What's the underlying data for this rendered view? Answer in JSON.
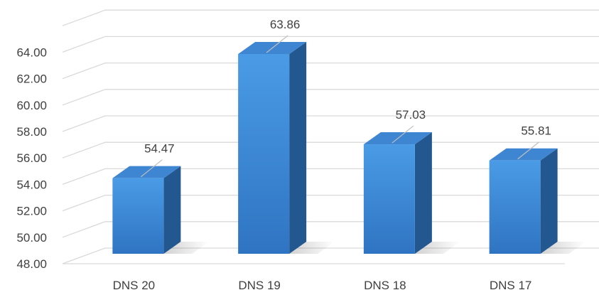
{
  "chart_data": {
    "type": "bar",
    "style": "3d-column",
    "categories": [
      "DNS 20",
      "DNS 19",
      "DNS 18",
      "DNS 17"
    ],
    "values": [
      54.47,
      63.86,
      57.03,
      55.81
    ],
    "data_labels": [
      "54.47",
      "63.86",
      "57.03",
      "55.81"
    ],
    "y_ticks": [
      "48.00",
      "50.00",
      "52.00",
      "54.00",
      "56.00",
      "58.00",
      "60.00",
      "62.00",
      "64.00"
    ],
    "ylim": [
      48,
      66
    ],
    "grid": true,
    "legend": "none",
    "title": "",
    "xlabel": "",
    "ylabel": "",
    "colors": {
      "bar_front_top": "#4a9be6",
      "bar_front_bottom": "#2f74c2",
      "bar_side": "#23578f",
      "bar_top": "#3f86d2",
      "grid": "#d9d9d9",
      "text": "#404040"
    }
  }
}
